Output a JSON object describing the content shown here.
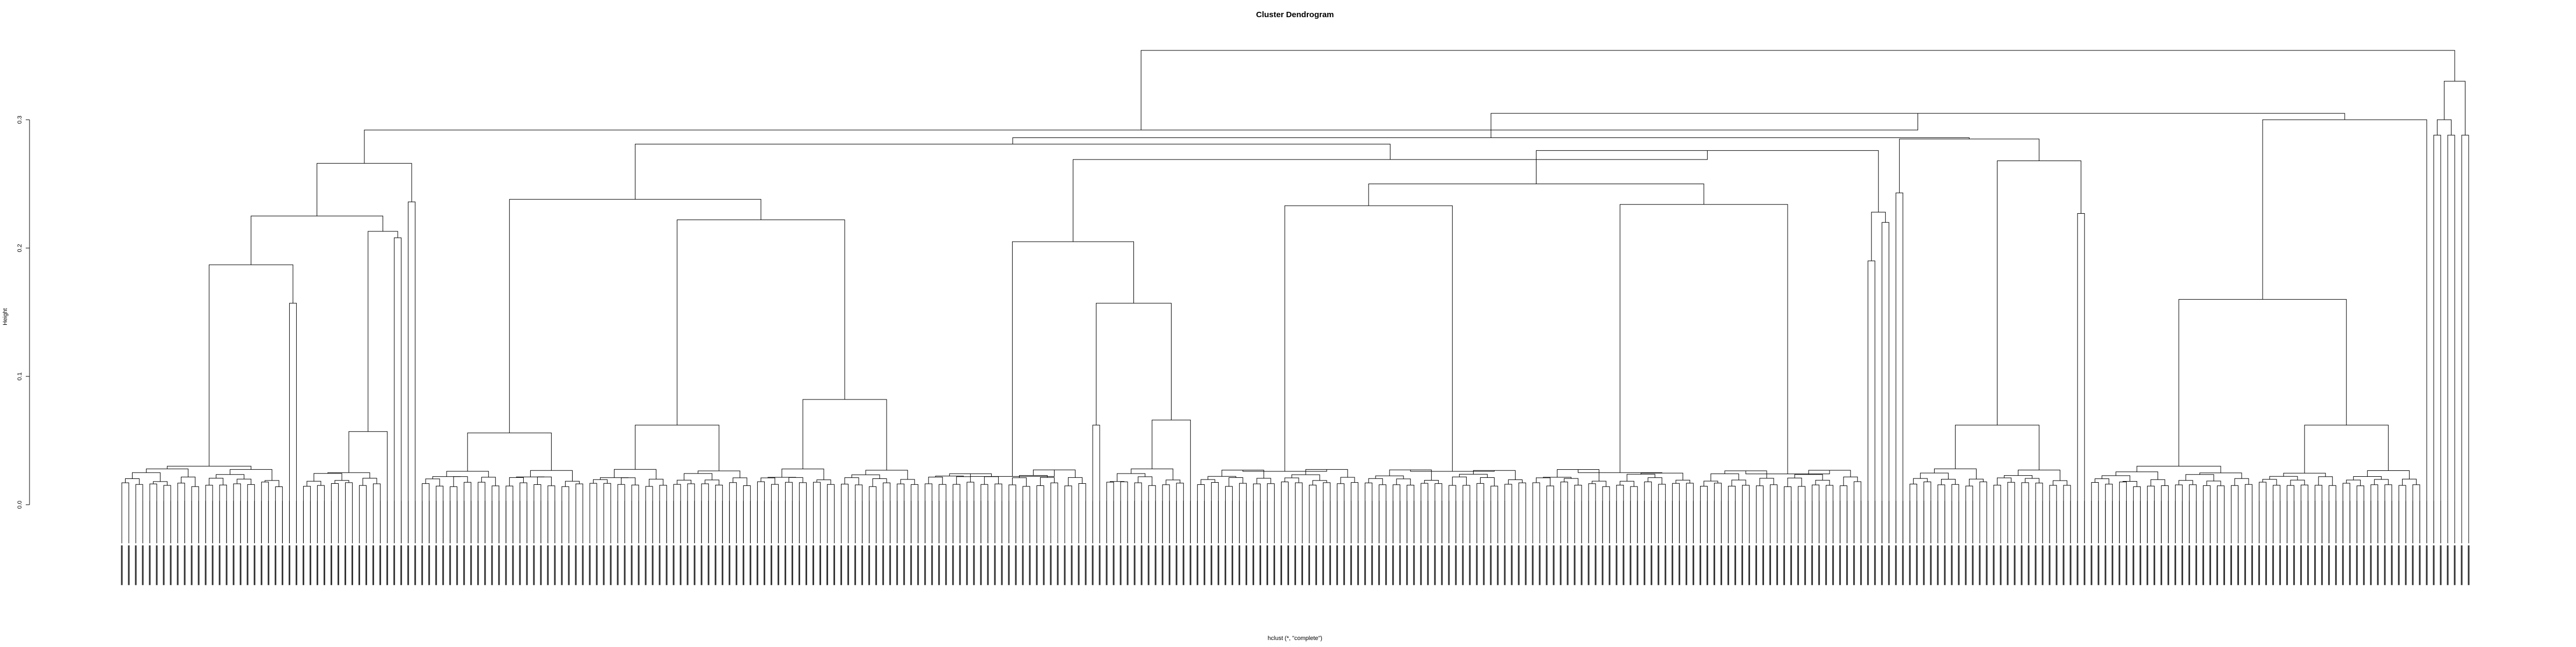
{
  "chart_data": {
    "type": "dendrogram",
    "title": "Cluster Dendrogram",
    "xlabel": "hclust (*, \"complete\")",
    "ylabel": "Height",
    "ylim": [
      0,
      0.36
    ],
    "yticks": [
      "0.0",
      "0.1",
      "0.2",
      "0.3"
    ],
    "ytick_values": [
      0,
      0.1,
      0.2,
      0.3
    ],
    "leaf_count": 360,
    "leaf_baseline": -0.03,
    "leaf_labels_legible": false,
    "line_color": "#000000",
    "tree": [
      0.354,
      [
        0.292,
        [
          0.266,
          [
            0.225,
            [
              0.187,
              [
                0.03,
                "c1",
                "c2"
              ],
              [
                0.157,
                "s1",
                "s2"
              ]
            ],
            [
              0.213,
              [
                0.057,
                "c3",
                "s3"
              ],
              [
                0.208,
                "s4",
                "s5"
              ]
            ]
          ],
          [
            0.236,
            "s6",
            "s7"
          ]
        ],
        [
          0.305,
          [
            0.286,
            [
              0.281,
              [
                0.238,
                [
                  0.056,
                  "c4",
                  "c5"
                ],
                [
                  0.222,
                  [
                    0.062,
                    "c6",
                    "c7"
                  ],
                  [
                    0.082,
                    "c8",
                    "c9"
                  ]
                ]
              ],
              [
                0.269,
                [
                  0.205,
                  [
                    0.022,
                    "c10",
                    "c11"
                  ],
                  [
                    0.157,
                    [
                      0.062,
                      "s8",
                      "s9"
                    ],
                    [
                      0.066,
                      "c12",
                      "s10"
                    ]
                  ]
                ],
                [
                  0.276,
                  [
                    0.25,
                    [
                      0.233,
                      [
                        0.026,
                        "c13",
                        "c14"
                      ],
                      [
                        0.026,
                        "c15",
                        "c16"
                      ]
                    ],
                    [
                      0.234,
                      [
                        0.025,
                        "c17",
                        "c18"
                      ],
                      [
                        0.024,
                        "c19",
                        "c20"
                      ]
                    ]
                  ],
                  [
                    0.228,
                    [
                      0.19,
                      "s11",
                      "s12"
                    ],
                    [
                      0.22,
                      "s13",
                      "s14"
                    ]
                  ]
                ]
              ]
            ],
            [
              0.285,
              [
                0.243,
                "s15",
                "s16"
              ],
              [
                0.268,
                [
                  0.062,
                  "c21",
                  "c22"
                ],
                [
                  0.227,
                  "s17",
                  "s18"
                ]
              ]
            ]
          ],
          [
            0.3,
            [
              0.16,
              [
                0.03,
                "c23",
                "c24"
              ],
              [
                0.062,
                "c25",
                "c26"
              ]
            ],
            "s19"
          ]
        ]
      ],
      [
        0.33,
        [
          0.3,
          [
            0.288,
            "s20",
            "s21"
          ],
          [
            0.288,
            "s22",
            "s23"
          ]
        ],
        [
          0.288,
          "s24",
          "s25"
        ]
      ]
    ]
  },
  "page": {
    "background": "#ffffff"
  }
}
